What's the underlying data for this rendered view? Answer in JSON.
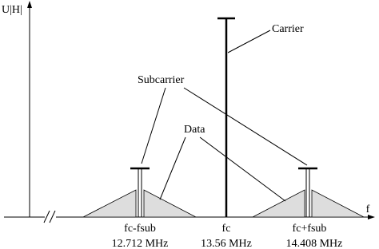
{
  "axes": {
    "y_label": "U|H|",
    "x_label": "f"
  },
  "annotations": {
    "carrier": "Carrier",
    "subcarrier": "Subcarrier",
    "data": "Data"
  },
  "markers": [
    {
      "label": "fc-fsub",
      "frequency": "12.712 MHz"
    },
    {
      "label": "fc",
      "frequency": "13.56 MHz"
    },
    {
      "label": "fc+fsub",
      "frequency": "14.408 MHz"
    }
  ]
}
